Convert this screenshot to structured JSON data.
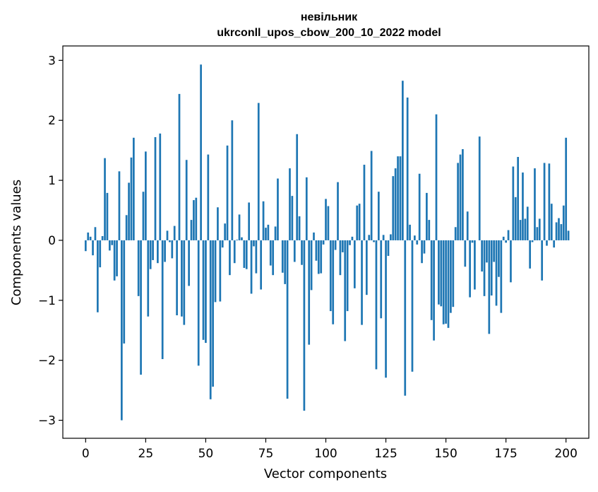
{
  "chart_data": {
    "type": "bar",
    "title": "невільник",
    "subtitle": "ukrconll_upos_cbow_200_10_2022 model",
    "xlabel": "Vector components",
    "ylabel": "Components values",
    "xlim": [
      -9.5,
      209.5
    ],
    "ylim": [
      -3.3,
      3.24
    ],
    "xticks": [
      0,
      25,
      50,
      75,
      100,
      125,
      150,
      175,
      200
    ],
    "yticks": [
      -3,
      -2,
      -1,
      0,
      1,
      2,
      3
    ],
    "xtick_labels": [
      "0",
      "25",
      "50",
      "75",
      "100",
      "125",
      "150",
      "175",
      "200"
    ],
    "ytick_labels": [
      "−3",
      "−2",
      "−1",
      "0",
      "1",
      "2",
      "3"
    ],
    "grid": false,
    "bar_color": "#1f77b4",
    "values": [
      -0.18,
      0.13,
      0.06,
      -0.25,
      0.22,
      -1.2,
      -0.45,
      0.07,
      1.37,
      0.79,
      -0.17,
      -0.08,
      -0.67,
      -0.6,
      1.15,
      -3.0,
      -1.72,
      0.42,
      0.96,
      1.38,
      1.71,
      0.0,
      -0.93,
      -2.24,
      0.81,
      1.48,
      -1.27,
      -0.48,
      -0.33,
      1.72,
      -0.38,
      1.78,
      -1.98,
      -0.36,
      0.16,
      -0.03,
      -0.3,
      0.24,
      -1.25,
      2.44,
      -1.27,
      -1.41,
      1.34,
      -0.76,
      0.34,
      0.67,
      0.71,
      -2.09,
      2.93,
      -1.66,
      -1.71,
      1.43,
      -2.65,
      -2.44,
      -1.03,
      0.55,
      -1.02,
      -0.12,
      0.28,
      1.58,
      -0.58,
      2.0,
      -0.38,
      0.01,
      0.43,
      0.05,
      -0.46,
      -0.48,
      0.63,
      -0.89,
      -0.1,
      -0.55,
      2.29,
      -0.82,
      0.65,
      0.21,
      0.26,
      -0.42,
      -0.58,
      0.23,
      1.03,
      0.0,
      -0.54,
      -0.73,
      -2.64,
      1.2,
      0.74,
      -0.36,
      1.77,
      0.4,
      -0.41,
      -2.84,
      1.05,
      -1.74,
      -0.83,
      0.13,
      -0.34,
      -0.56,
      -0.55,
      -0.07,
      0.69,
      0.57,
      -1.18,
      -1.4,
      -0.16,
      0.97,
      -0.58,
      -0.2,
      -1.68,
      -1.18,
      -0.08,
      0.06,
      -0.8,
      0.58,
      0.61,
      -1.41,
      1.26,
      -0.91,
      0.09,
      1.49,
      -0.03,
      -2.15,
      0.81,
      -1.3,
      0.09,
      -2.29,
      -0.26,
      0.1,
      1.07,
      1.2,
      1.4,
      1.4,
      2.66,
      -2.59,
      2.38,
      0.26,
      -2.19,
      0.08,
      -0.07,
      1.11,
      -0.38,
      -0.22,
      0.79,
      0.34,
      -1.33,
      -1.67,
      2.1,
      -1.07,
      -1.1,
      -1.4,
      -1.39,
      -1.46,
      -1.21,
      -1.11,
      0.22,
      1.29,
      1.43,
      1.52,
      -0.44,
      0.48,
      -0.95,
      -0.04,
      -0.82,
      0.0,
      1.73,
      -0.52,
      -0.93,
      -0.37,
      -1.56,
      -0.92,
      -0.36,
      -1.09,
      -0.61,
      -1.21,
      0.06,
      -0.04,
      0.17,
      -0.7,
      1.23,
      0.72,
      1.39,
      0.34,
      1.13,
      0.36,
      0.56,
      -0.47,
      -0.03,
      1.2,
      0.22,
      0.36,
      -0.67,
      1.29,
      -0.09,
      1.28,
      0.61,
      -0.12,
      0.3,
      0.37,
      0.27,
      0.58,
      1.71,
      0.16
    ]
  }
}
